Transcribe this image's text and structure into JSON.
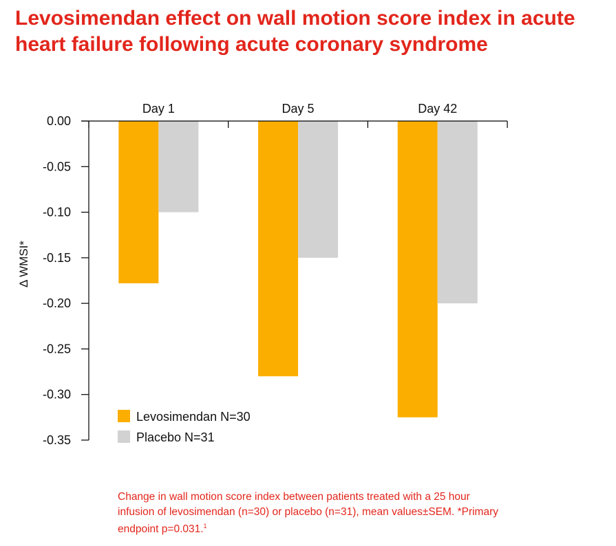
{
  "title": "Levosimendan effect on wall motion score index in acute heart failure following acute coronary syndrome",
  "chart_data": {
    "type": "bar",
    "title": "Levosimendan effect on wall motion score index in acute heart failure following acute coronary syndrome",
    "xlabel": "",
    "ylabel": "Δ WMSI*",
    "ylim": [
      -0.35,
      0.0
    ],
    "yticks": [
      0.0,
      -0.05,
      -0.1,
      -0.15,
      -0.2,
      -0.25,
      -0.3,
      -0.35
    ],
    "ytick_labels": [
      "0.00",
      "-0.05",
      "-0.10",
      "-0.15",
      "-0.20",
      "-0.25",
      "-0.30",
      "-0.35"
    ],
    "categories": [
      "Day 1",
      "Day 5",
      "Day 42"
    ],
    "series": [
      {
        "name": "Levosimendan N=30",
        "color": "#fbae00",
        "values": [
          -0.178,
          -0.28,
          -0.325
        ]
      },
      {
        "name": "Placebo N=31",
        "color": "#d2d2d2",
        "values": [
          -0.1,
          -0.15,
          -0.2
        ]
      }
    ],
    "grid": false,
    "legend_position": "bottom-left"
  },
  "caption": {
    "text": "Change in wall motion score index between patients treated with a 25 hour infusion of levosimendan (n=30) or placebo (n=31), mean values±SEM. *Primary endpoint p=0.031.",
    "superscript": "1"
  }
}
